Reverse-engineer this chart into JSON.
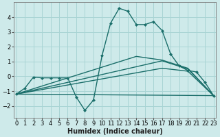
{
  "xlabel": "Humidex (Indice chaleur)",
  "background_color": "#ceeaea",
  "grid_color": "#a8d4d4",
  "line_color": "#1a6e6a",
  "series_main": {
    "x": [
      0,
      1,
      2,
      3,
      4,
      5,
      6,
      7,
      8,
      9,
      10,
      11,
      12,
      13,
      14,
      15,
      16,
      17,
      18,
      19,
      20,
      21,
      22,
      23
    ],
    "y": [
      -1.2,
      -0.8,
      -0.05,
      -0.1,
      -0.1,
      -0.1,
      -0.1,
      -1.4,
      -2.3,
      -1.6,
      1.4,
      3.6,
      4.6,
      4.4,
      3.5,
      3.5,
      3.7,
      3.1,
      1.5,
      0.7,
      0.4,
      0.3,
      -0.4,
      -1.3
    ]
  },
  "series_fan": [
    {
      "x": [
        0,
        23
      ],
      "y": [
        -1.2,
        -1.3
      ]
    },
    {
      "x": [
        0,
        17,
        20,
        23
      ],
      "y": [
        -1.2,
        0.55,
        0.35,
        -1.3
      ]
    },
    {
      "x": [
        0,
        17,
        20,
        23
      ],
      "y": [
        -1.2,
        1.05,
        0.5,
        -1.3
      ]
    },
    {
      "x": [
        0,
        14,
        17,
        20,
        23
      ],
      "y": [
        -1.2,
        1.35,
        1.1,
        0.55,
        -1.3
      ]
    }
  ],
  "ylim": [
    -2.8,
    5.0
  ],
  "xlim": [
    -0.3,
    23.3
  ],
  "yticks": [
    -2,
    -1,
    0,
    1,
    2,
    3,
    4
  ],
  "xticks": [
    0,
    1,
    2,
    3,
    4,
    5,
    6,
    7,
    8,
    9,
    10,
    11,
    12,
    13,
    14,
    15,
    16,
    17,
    18,
    19,
    20,
    21,
    22,
    23
  ]
}
